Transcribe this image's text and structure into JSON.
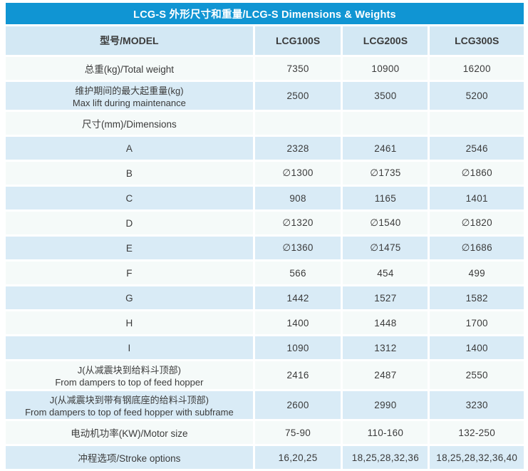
{
  "title": "LCG-S 外形尺寸和重量/LCG-S Dimensions & Weights",
  "colors": {
    "title_bg": "#1095D3",
    "title_text": "#FFFFFF",
    "header_bg": "#D3E8F4",
    "row_blue": "#D9EBF6",
    "row_white": "#F5FAF9",
    "text": "#3B3B3B"
  },
  "table": {
    "header": {
      "model": "型号/MODEL",
      "col1": "LCG100S",
      "col2": "LCG200S",
      "col3": "LCG300S"
    },
    "rows": [
      {
        "label": "总重(kg)/Total weight",
        "label2": "",
        "values": [
          "7350",
          "10900",
          "16200"
        ]
      },
      {
        "label": "维护期间的最大起重量(kg)",
        "label2": "Max lift during maintenance",
        "values": [
          "2500",
          "3500",
          "5200"
        ]
      },
      {
        "label": "尺寸(mm)/Dimensions",
        "label2": "",
        "values": [
          "",
          "",
          ""
        ]
      },
      {
        "label": "A",
        "label2": "",
        "values": [
          "2328",
          "2461",
          "2546"
        ]
      },
      {
        "label": "B",
        "label2": "",
        "values": [
          "∅1300",
          "∅1735",
          "∅1860"
        ]
      },
      {
        "label": "C",
        "label2": "",
        "values": [
          "908",
          "1165",
          "1401"
        ]
      },
      {
        "label": "D",
        "label2": "",
        "values": [
          "∅1320",
          "∅1540",
          "∅1820"
        ]
      },
      {
        "label": "E",
        "label2": "",
        "values": [
          "∅1360",
          "∅1475",
          "∅1686"
        ]
      },
      {
        "label": "F",
        "label2": "",
        "values": [
          "566",
          "454",
          "499"
        ]
      },
      {
        "label": "G",
        "label2": "",
        "values": [
          "1442",
          "1527",
          "1582"
        ]
      },
      {
        "label": "H",
        "label2": "",
        "values": [
          "1400",
          "1448",
          "1700"
        ]
      },
      {
        "label": "I",
        "label2": "",
        "values": [
          "1090",
          "1312",
          "1400"
        ]
      },
      {
        "label": "J(从减震块到给料斗顶部)",
        "label2": "From dampers to top of feed hopper",
        "values": [
          "2416",
          "2487",
          "2550"
        ]
      },
      {
        "label": "J(从减震块到带有钢底座的给料斗顶部)",
        "label2": "From dampers to top of feed hopper with subframe",
        "values": [
          "2600",
          "2990",
          "3230"
        ]
      },
      {
        "label": "电动机功率(KW)/Motor size",
        "label2": "",
        "values": [
          "75-90",
          "110-160",
          "132-250"
        ]
      },
      {
        "label": "冲程选项/Stroke options",
        "label2": "",
        "values": [
          "16,20,25",
          "18,25,28,32,36",
          "18,25,28,32,36,40"
        ]
      }
    ]
  }
}
